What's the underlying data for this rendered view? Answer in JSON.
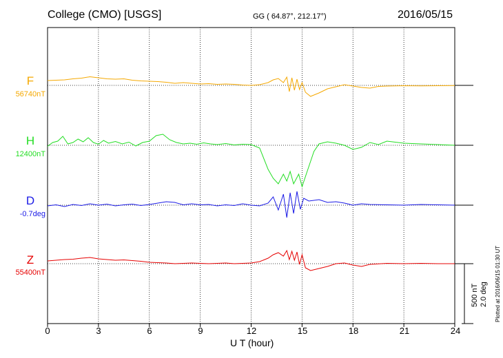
{
  "header": {
    "station": "College (CMO)  [USGS]",
    "coords": "GG ( 64.87°, 212.17°)",
    "date": "2016/05/15"
  },
  "scale": {
    "nt": "500 nT",
    "deg": "2.0 deg"
  },
  "plotted_note": "Plotted at 2016/06/15 01:30 UT",
  "chart_data": {
    "type": "line",
    "xlabel": "U T (hour)",
    "xlim": [
      0,
      24
    ],
    "xticks": [
      0,
      3,
      6,
      9,
      12,
      15,
      18,
      21,
      24
    ],
    "grid": true,
    "components": [
      {
        "name": "F",
        "baseline_label": "56740nT",
        "color": "#f5a800",
        "values": [
          [
            0,
            70
          ],
          [
            0.5,
            75
          ],
          [
            1,
            80
          ],
          [
            1.5,
            95
          ],
          [
            2,
            105
          ],
          [
            2.5,
            125
          ],
          [
            3,
            110
          ],
          [
            3.5,
            95
          ],
          [
            4,
            90
          ],
          [
            4.5,
            95
          ],
          [
            5,
            75
          ],
          [
            5.5,
            65
          ],
          [
            6,
            60
          ],
          [
            6.5,
            55
          ],
          [
            7,
            45
          ],
          [
            7.5,
            30
          ],
          [
            8,
            40
          ],
          [
            8.5,
            30
          ],
          [
            9,
            20
          ],
          [
            9.5,
            25
          ],
          [
            10,
            15
          ],
          [
            10.5,
            20
          ],
          [
            11,
            15
          ],
          [
            11.5,
            5
          ],
          [
            12,
            0
          ],
          [
            12.5,
            10
          ],
          [
            13,
            40
          ],
          [
            13.3,
            80
          ],
          [
            13.6,
            100
          ],
          [
            13.9,
            40
          ],
          [
            14.1,
            120
          ],
          [
            14.25,
            -90
          ],
          [
            14.4,
            110
          ],
          [
            14.55,
            -70
          ],
          [
            14.7,
            90
          ],
          [
            14.85,
            -60
          ],
          [
            15,
            40
          ],
          [
            15.2,
            -100
          ],
          [
            15.5,
            -160
          ],
          [
            16,
            -110
          ],
          [
            16.5,
            -50
          ],
          [
            17,
            -20
          ],
          [
            17.5,
            10
          ],
          [
            18,
            -10
          ],
          [
            18.5,
            -30
          ],
          [
            19,
            -40
          ],
          [
            19.5,
            -15
          ],
          [
            20,
            -10
          ],
          [
            21,
            -5
          ],
          [
            22,
            -8
          ],
          [
            23,
            -5
          ],
          [
            24,
            -2
          ]
        ]
      },
      {
        "name": "H",
        "baseline_label": "12400nT",
        "color": "#22dd22",
        "values": [
          [
            0,
            -15
          ],
          [
            0.3,
            40
          ],
          [
            0.6,
            60
          ],
          [
            0.9,
            130
          ],
          [
            1.2,
            20
          ],
          [
            1.5,
            40
          ],
          [
            1.8,
            90
          ],
          [
            2.1,
            50
          ],
          [
            2.4,
            110
          ],
          [
            2.7,
            40
          ],
          [
            3,
            15
          ],
          [
            3.3,
            70
          ],
          [
            3.6,
            30
          ],
          [
            4,
            55
          ],
          [
            4.4,
            20
          ],
          [
            4.8,
            45
          ],
          [
            5.2,
            -10
          ],
          [
            5.6,
            40
          ],
          [
            6,
            60
          ],
          [
            6.4,
            140
          ],
          [
            6.8,
            160
          ],
          [
            7.2,
            80
          ],
          [
            7.6,
            40
          ],
          [
            8,
            20
          ],
          [
            8.4,
            30
          ],
          [
            8.8,
            15
          ],
          [
            9.2,
            35
          ],
          [
            9.6,
            20
          ],
          [
            10,
            10
          ],
          [
            10.5,
            25
          ],
          [
            11,
            5
          ],
          [
            11.5,
            15
          ],
          [
            12,
            10
          ],
          [
            12.5,
            -40
          ],
          [
            13,
            -350
          ],
          [
            13.3,
            -480
          ],
          [
            13.6,
            -560
          ],
          [
            13.9,
            -420
          ],
          [
            14.1,
            -520
          ],
          [
            14.3,
            -380
          ],
          [
            14.5,
            -560
          ],
          [
            14.8,
            -420
          ],
          [
            15,
            -600
          ],
          [
            15.3,
            -380
          ],
          [
            15.7,
            -90
          ],
          [
            16,
            20
          ],
          [
            16.5,
            50
          ],
          [
            17,
            30
          ],
          [
            17.5,
            0
          ],
          [
            18,
            -60
          ],
          [
            18.5,
            -30
          ],
          [
            19,
            40
          ],
          [
            19.5,
            10
          ],
          [
            20,
            60
          ],
          [
            21,
            30
          ],
          [
            22,
            20
          ],
          [
            23,
            10
          ],
          [
            24,
            0
          ]
        ]
      },
      {
        "name": "D",
        "baseline_label": "-0.7deg",
        "color": "#1a1ae6",
        "values": [
          [
            0,
            -10
          ],
          [
            0.5,
            5
          ],
          [
            1,
            -20
          ],
          [
            1.5,
            10
          ],
          [
            2,
            -5
          ],
          [
            2.5,
            20
          ],
          [
            3,
            0
          ],
          [
            3.5,
            15
          ],
          [
            4,
            -10
          ],
          [
            4.5,
            5
          ],
          [
            5,
            15
          ],
          [
            5.5,
            -5
          ],
          [
            6,
            10
          ],
          [
            6.5,
            30
          ],
          [
            7,
            50
          ],
          [
            7.5,
            40
          ],
          [
            8,
            5
          ],
          [
            8.5,
            20
          ],
          [
            9,
            5
          ],
          [
            9.5,
            10
          ],
          [
            10,
            -10
          ],
          [
            10.5,
            5
          ],
          [
            11,
            -5
          ],
          [
            11.5,
            20
          ],
          [
            12,
            0
          ],
          [
            12.5,
            -10
          ],
          [
            13,
            30
          ],
          [
            13.3,
            120
          ],
          [
            13.6,
            -70
          ],
          [
            13.9,
            160
          ],
          [
            14.1,
            -180
          ],
          [
            14.3,
            180
          ],
          [
            14.5,
            -120
          ],
          [
            14.7,
            200
          ],
          [
            14.9,
            -60
          ],
          [
            15.1,
            100
          ],
          [
            15.4,
            60
          ],
          [
            16,
            80
          ],
          [
            16.5,
            40
          ],
          [
            17,
            50
          ],
          [
            17.5,
            30
          ],
          [
            18,
            0
          ],
          [
            18.5,
            20
          ],
          [
            19,
            10
          ],
          [
            20,
            5
          ],
          [
            21,
            0
          ],
          [
            22,
            10
          ],
          [
            23,
            5
          ],
          [
            24,
            0
          ]
        ]
      },
      {
        "name": "Z",
        "baseline_label": "55400nT",
        "color": "#e60000",
        "values": [
          [
            0,
            40
          ],
          [
            0.5,
            50
          ],
          [
            1,
            60
          ],
          [
            1.5,
            65
          ],
          [
            2,
            80
          ],
          [
            2.5,
            90
          ],
          [
            3,
            70
          ],
          [
            3.5,
            60
          ],
          [
            4,
            50
          ],
          [
            4.5,
            55
          ],
          [
            5,
            45
          ],
          [
            5.5,
            35
          ],
          [
            6,
            20
          ],
          [
            6.5,
            15
          ],
          [
            7,
            10
          ],
          [
            7.5,
            0
          ],
          [
            8,
            5
          ],
          [
            8.5,
            10
          ],
          [
            9,
            5
          ],
          [
            9.5,
            0
          ],
          [
            10,
            5
          ],
          [
            10.5,
            10
          ],
          [
            11,
            0
          ],
          [
            11.5,
            5
          ],
          [
            12,
            10
          ],
          [
            12.5,
            30
          ],
          [
            13,
            80
          ],
          [
            13.3,
            130
          ],
          [
            13.6,
            160
          ],
          [
            13.9,
            110
          ],
          [
            14.1,
            190
          ],
          [
            14.25,
            60
          ],
          [
            14.4,
            180
          ],
          [
            14.55,
            50
          ],
          [
            14.7,
            170
          ],
          [
            14.85,
            -10
          ],
          [
            15,
            130
          ],
          [
            15.2,
            -60
          ],
          [
            15.5,
            -100
          ],
          [
            16,
            -70
          ],
          [
            16.5,
            -40
          ],
          [
            17,
            0
          ],
          [
            17.5,
            10
          ],
          [
            18,
            -20
          ],
          [
            18.5,
            -40
          ],
          [
            19,
            -10
          ],
          [
            20,
            5
          ],
          [
            21,
            0
          ],
          [
            22,
            5
          ],
          [
            23,
            0
          ],
          [
            24,
            0
          ]
        ]
      }
    ]
  }
}
